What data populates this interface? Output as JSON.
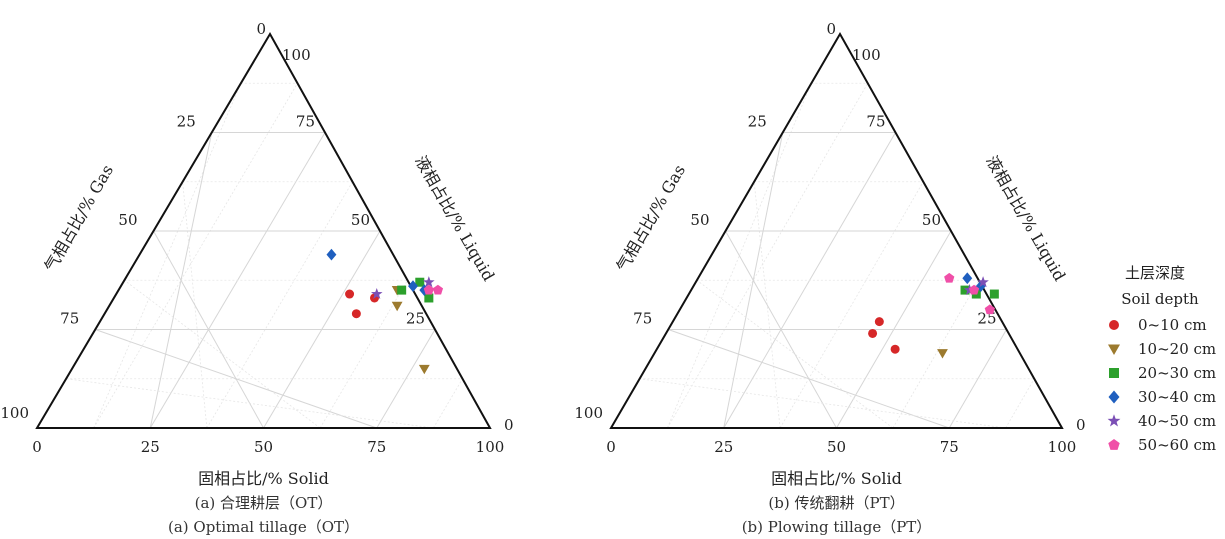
{
  "chart_data": [
    {
      "type": "scatter",
      "subtype": "ternary",
      "panel": "a",
      "caption_zh": "(a)  合理耕层（OT）",
      "caption_en": "(a)  Optimal tillage（OT）",
      "axes": {
        "solid": "固相占比/% Solid",
        "liquid": "液相占比/% Liquid",
        "gas": "气相占比/% Gas",
        "ticks": [
          "0",
          "25",
          "50",
          "75",
          "100"
        ],
        "range": [
          0,
          100
        ],
        "grid": true
      },
      "series": [
        {
          "name": "0~10 cm",
          "points": [
            {
              "solid": 52,
              "liquid": 34,
              "gas": 14
            },
            {
              "solid": 58,
              "liquid": 33,
              "gas": 9
            },
            {
              "solid": 56,
              "liquid": 29,
              "gas": 15
            }
          ]
        },
        {
          "name": "10~20 cm",
          "points": [
            {
              "solid": 62,
              "liquid": 35,
              "gas": 3
            },
            {
              "solid": 64,
              "liquid": 31,
              "gas": 5
            },
            {
              "solid": 78,
              "liquid": 15,
              "gas": 7
            }
          ]
        },
        {
          "name": "20~30 cm",
          "points": [
            {
              "solid": 63,
              "liquid": 35,
              "gas": 2
            },
            {
              "solid": 66,
              "liquid": 37,
              "gas": -3
            },
            {
              "solid": 70,
              "liquid": 33,
              "gas": -3
            }
          ]
        },
        {
          "name": "30~40 cm",
          "points": [
            {
              "solid": 43,
              "liquid": 44,
              "gas": 13
            },
            {
              "solid": 65,
              "liquid": 36,
              "gas": -1
            },
            {
              "solid": 68,
              "liquid": 35,
              "gas": -3
            }
          ]
        },
        {
          "name": "40~50 cm",
          "points": [
            {
              "solid": 58,
              "liquid": 34,
              "gas": 8
            },
            {
              "solid": 68,
              "liquid": 37,
              "gas": -5
            }
          ]
        },
        {
          "name": "50~60 cm",
          "points": [
            {
              "solid": 69,
              "liquid": 35,
              "gas": -4
            },
            {
              "solid": 71,
              "liquid": 35,
              "gas": -6
            }
          ]
        }
      ]
    },
    {
      "type": "scatter",
      "subtype": "ternary",
      "panel": "b",
      "caption_zh": "(b)  传统翻耕（PT）",
      "caption_en": "(b)  Plowing tillage（PT）",
      "axes": {
        "solid": "固相占比/% Solid",
        "liquid": "液相占比/% Liquid",
        "gas": "气相占比/% Gas",
        "ticks": [
          "0",
          "25",
          "50",
          "75",
          "100"
        ],
        "range": [
          0,
          100
        ],
        "grid": true
      },
      "series": [
        {
          "name": "0~10 cm",
          "points": [
            {
              "solid": 46,
              "liquid": 27,
              "gas": 27
            },
            {
              "solid": 46,
              "liquid": 24,
              "gas": 30
            },
            {
              "solid": 53,
              "liquid": 20,
              "gas": 27
            }
          ]
        },
        {
          "name": "10~20 cm",
          "points": [
            {
              "solid": 64,
              "liquid": 19,
              "gas": 17
            }
          ]
        },
        {
          "name": "20~30 cm",
          "points": [
            {
              "solid": 61,
              "liquid": 35,
              "gas": 4
            },
            {
              "solid": 64,
              "liquid": 34,
              "gas": 2
            },
            {
              "solid": 68,
              "liquid": 34,
              "gas": -2
            }
          ]
        },
        {
          "name": "30~40 cm",
          "points": [
            {
              "solid": 60,
              "liquid": 38,
              "gas": 2
            },
            {
              "solid": 64,
              "liquid": 36,
              "gas": 0
            }
          ]
        },
        {
          "name": "40~50 cm",
          "points": [
            {
              "solid": 62,
              "liquid": 35,
              "gas": 3
            },
            {
              "solid": 64,
              "liquid": 37,
              "gas": -1
            }
          ]
        },
        {
          "name": "50~60 cm",
          "points": [
            {
              "solid": 56,
              "liquid": 38,
              "gas": 6
            },
            {
              "solid": 63,
              "liquid": 35,
              "gas": 2
            },
            {
              "solid": 69,
              "liquid": 30,
              "gas": 1
            }
          ]
        }
      ]
    }
  ],
  "legend": {
    "title_zh": "土层深度",
    "title_en": "Soil depth",
    "placement": "right",
    "items": [
      {
        "label": "0~10 cm",
        "marker": "circle",
        "color": "#d62728"
      },
      {
        "label": "10~20 cm",
        "marker": "triangle-down",
        "color": "#9c7a2e"
      },
      {
        "label": "20~30 cm",
        "marker": "square",
        "color": "#2ca02c"
      },
      {
        "label": "30~40 cm",
        "marker": "diamond",
        "color": "#1f5fbf"
      },
      {
        "label": "40~50 cm",
        "marker": "star",
        "color": "#7b4fb5"
      },
      {
        "label": "50~60 cm",
        "marker": "pentagon",
        "color": "#f04fa8"
      }
    ]
  }
}
